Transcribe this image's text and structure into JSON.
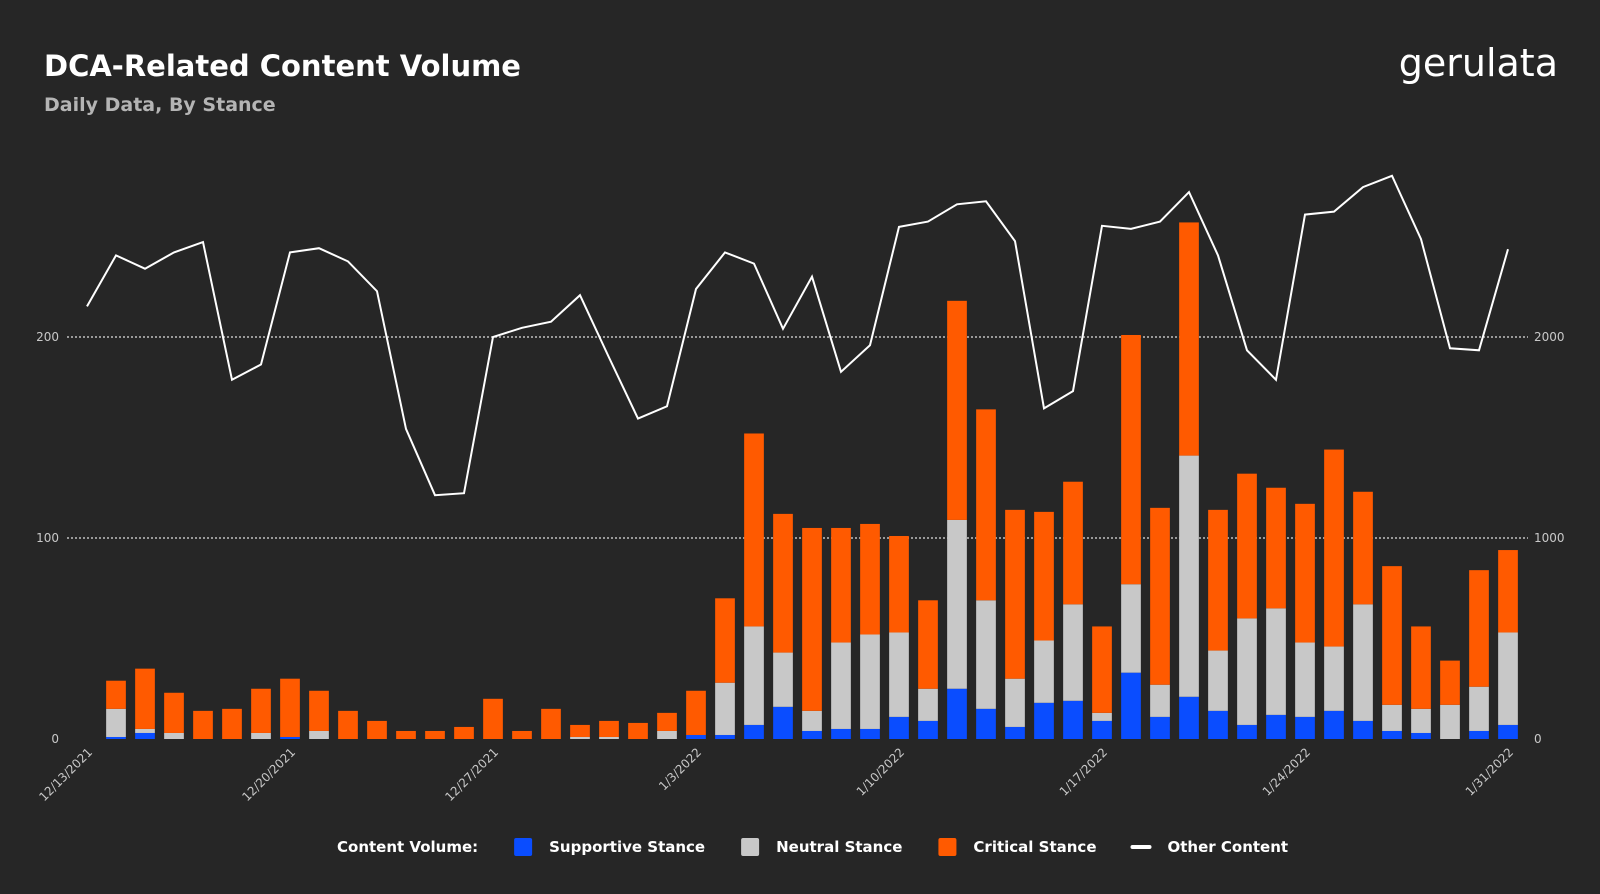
{
  "chart_data": {
    "type": "bar",
    "stacked": true,
    "title": "DCA-Related Content Volume",
    "subtitle": "Daily Data, By Stance",
    "brand": "gerulata",
    "legend_title": "Content Volume:",
    "categories": [
      "12/13/2021",
      null,
      null,
      null,
      null,
      null,
      null,
      "12/20/2021",
      null,
      null,
      null,
      null,
      null,
      null,
      "12/27/2021",
      null,
      null,
      null,
      null,
      null,
      null,
      "1/3/2022",
      null,
      null,
      null,
      null,
      null,
      null,
      "1/10/2022",
      null,
      null,
      null,
      null,
      null,
      null,
      "1/17/2022",
      null,
      null,
      null,
      null,
      null,
      null,
      "1/24/2022",
      null,
      null,
      null,
      null,
      null,
      null,
      "1/31/2022"
    ],
    "series": [
      {
        "name": "Supportive Stance",
        "color": "#0a4dff",
        "values": [
          0,
          1,
          3,
          0,
          0,
          0,
          0,
          1,
          0,
          0,
          0,
          0,
          0,
          0,
          0,
          0,
          0,
          0,
          0,
          0,
          0,
          2,
          2,
          7,
          16,
          4,
          5,
          5,
          11,
          9,
          25,
          15,
          6,
          18,
          19,
          9,
          33,
          11,
          21,
          14,
          7,
          12,
          11,
          14,
          9,
          4,
          3,
          0,
          4,
          7
        ]
      },
      {
        "name": "Neutral Stance",
        "color": "#c8c8c8",
        "values": [
          0,
          14,
          2,
          3,
          0,
          0,
          3,
          0,
          4,
          0,
          0,
          0,
          0,
          0,
          0,
          0,
          0,
          1,
          1,
          0,
          4,
          0,
          26,
          49,
          27,
          10,
          43,
          47,
          42,
          16,
          84,
          54,
          24,
          31,
          48,
          4,
          44,
          16,
          120,
          30,
          53,
          53,
          37,
          32,
          58,
          13,
          12,
          17,
          22,
          46
        ]
      },
      {
        "name": "Critical Stance",
        "color": "#ff5a00",
        "values": [
          0,
          14,
          30,
          20,
          14,
          15,
          22,
          29,
          20,
          14,
          9,
          4,
          4,
          6,
          20,
          4,
          15,
          6,
          8,
          8,
          9,
          22,
          42,
          96,
          69,
          91,
          57,
          55,
          48,
          44,
          109,
          95,
          84,
          64,
          61,
          43,
          124,
          88,
          116,
          70,
          72,
          60,
          69,
          98,
          56,
          69,
          41,
          22,
          58,
          41
        ]
      },
      {
        "name": "Other Content",
        "color": "#ffffff",
        "type": "line",
        "axis": "y2",
        "values": [
          2152,
          2406,
          2340,
          2421,
          2472,
          1787,
          1863,
          2421,
          2442,
          2376,
          2228,
          1543,
          1213,
          1223,
          2000,
          2046,
          2076,
          2208,
          1898,
          1594,
          1655,
          2239,
          2421,
          2365,
          2041,
          2300,
          1827,
          1959,
          2548,
          2574,
          2660,
          2675,
          2477,
          1645,
          1731,
          2553,
          2538,
          2574,
          2721,
          2406,
          1934,
          1787,
          2609,
          2624,
          2746,
          2802,
          2487,
          1944,
          1934,
          2437
        ]
      }
    ],
    "ylim": [
      0,
      300
    ],
    "yticks": [
      0,
      100,
      200
    ],
    "y2lim": [
      0,
      3000
    ],
    "y2ticks": [
      0,
      1000,
      2000
    ],
    "grid": true,
    "legend": "bottom"
  }
}
